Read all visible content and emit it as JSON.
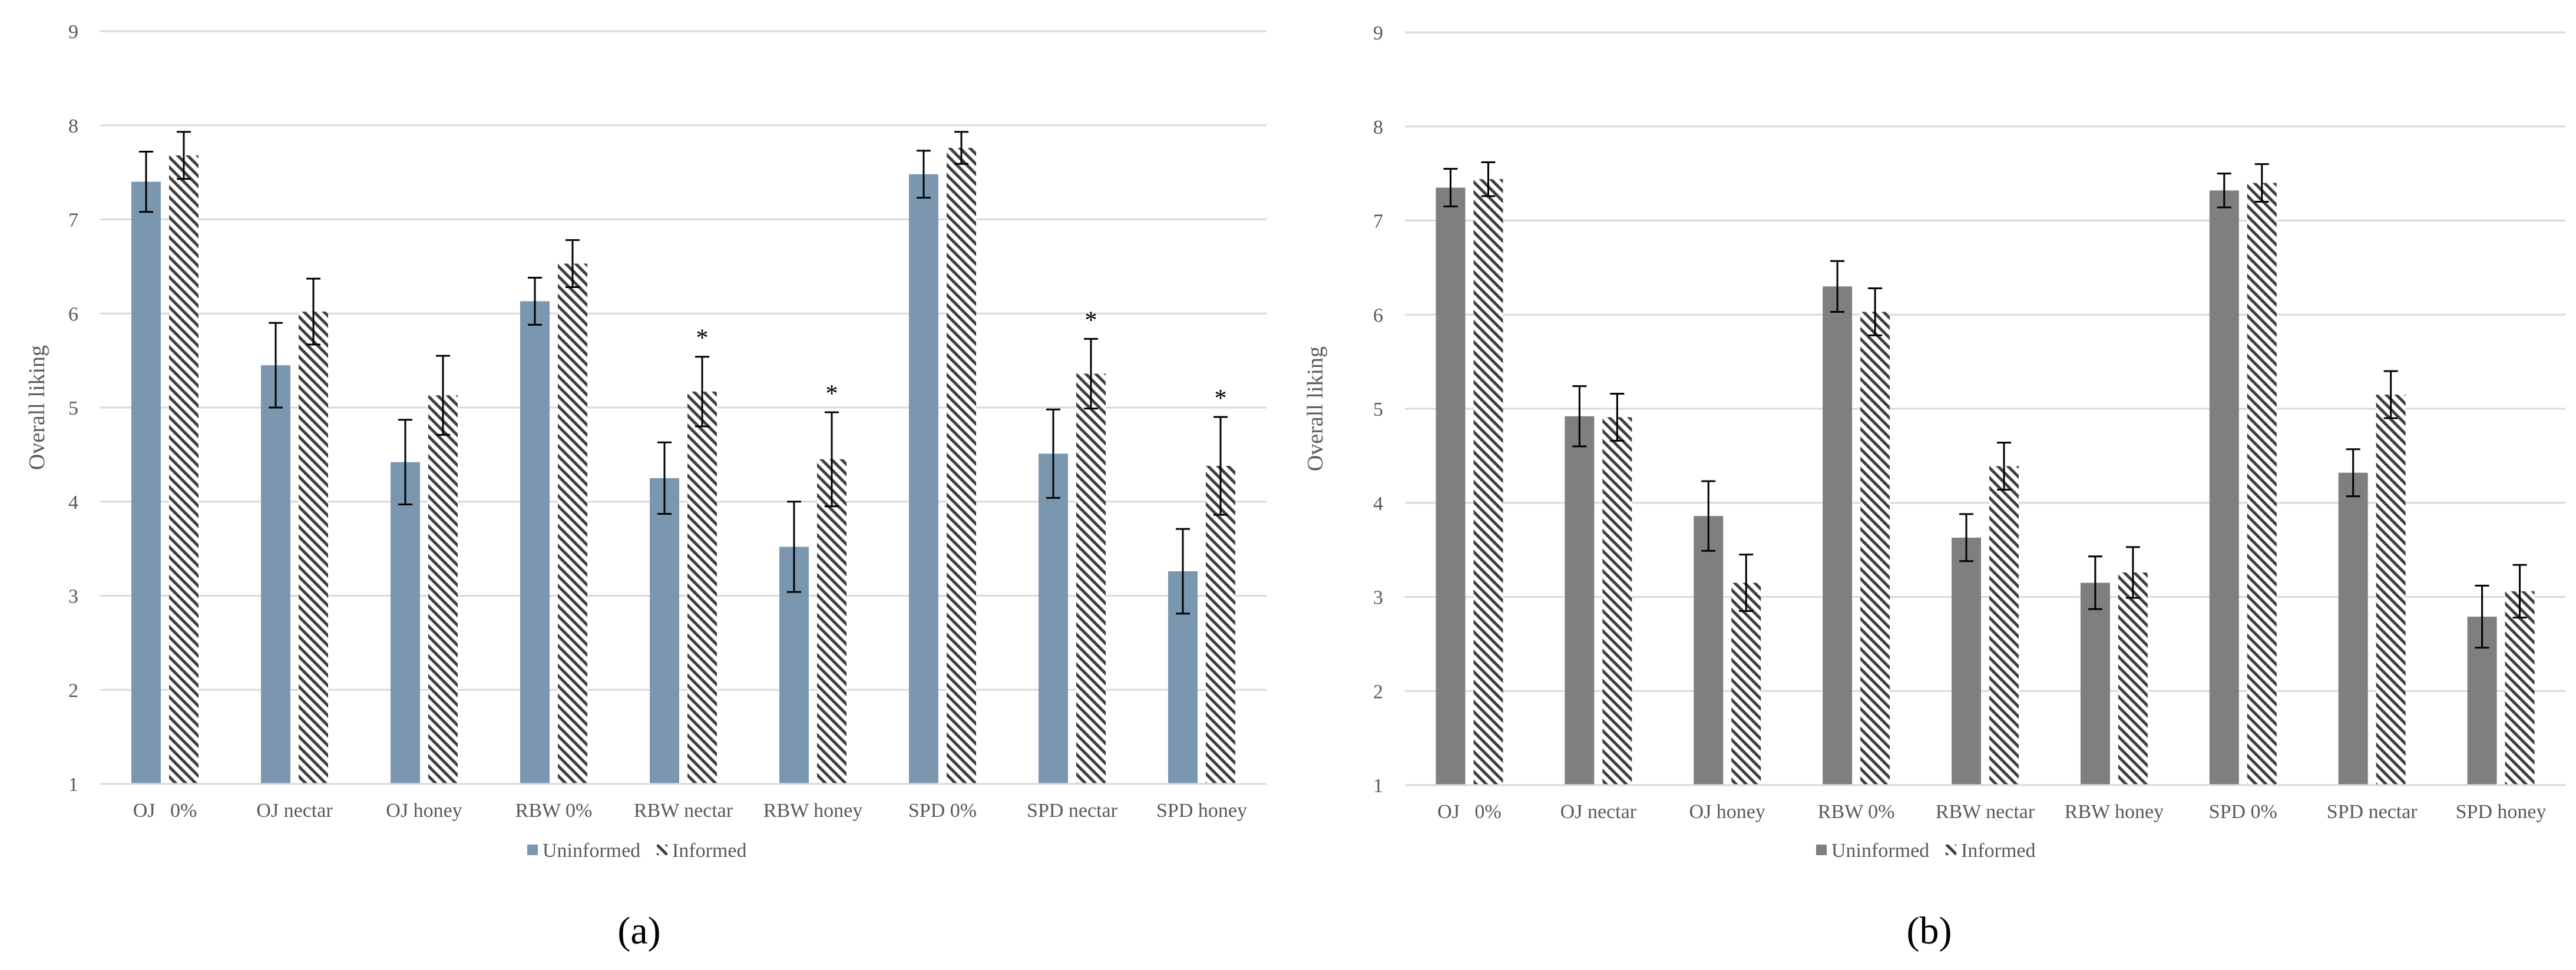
{
  "panel_labels": [
    "(a)",
    "(b)"
  ],
  "colors": {
    "uninformed_a": "#7b97b0",
    "uninformed_b": "#7f7f7f",
    "hatch": "#404040",
    "grid": "#d9d9d9",
    "axis_text": "#595959",
    "error_bar": "#000000"
  },
  "chart_data": [
    {
      "type": "bar",
      "panel": "a",
      "title": "",
      "xlabel": "",
      "ylabel": "Overall liking",
      "ylim": [
        1,
        9
      ],
      "yticks": [
        1,
        2,
        3,
        4,
        5,
        6,
        7,
        8,
        9
      ],
      "grid": true,
      "legend_position": "bottom",
      "categories": [
        "OJ   0%",
        "OJ nectar",
        "OJ honey",
        "RBW 0%",
        "RBW nectar",
        "RBW honey",
        "SPD 0%",
        "SPD nectar",
        "SPD honey"
      ],
      "series": [
        {
          "name": "Uninformed",
          "pattern": "solid",
          "values": [
            7.4,
            5.45,
            4.42,
            6.13,
            4.25,
            3.52,
            7.48,
            4.51,
            3.26
          ],
          "errors": [
            0.32,
            0.45,
            0.45,
            0.25,
            0.38,
            0.48,
            0.25,
            0.47,
            0.45
          ]
        },
        {
          "name": "Informed",
          "pattern": "hatched",
          "values": [
            7.68,
            6.02,
            5.13,
            6.53,
            5.17,
            4.45,
            7.76,
            5.36,
            4.38
          ],
          "errors": [
            0.25,
            0.35,
            0.42,
            0.25,
            0.37,
            0.5,
            0.17,
            0.37,
            0.52
          ]
        }
      ],
      "annotations": [
        {
          "category": "RBW nectar",
          "series": "Informed",
          "text": "*"
        },
        {
          "category": "RBW honey",
          "series": "Informed",
          "text": "*"
        },
        {
          "category": "SPD nectar",
          "series": "Informed",
          "text": "*"
        },
        {
          "category": "SPD honey",
          "series": "Informed",
          "text": "*"
        }
      ]
    },
    {
      "type": "bar",
      "panel": "b",
      "title": "",
      "xlabel": "",
      "ylabel": "Overall liking",
      "ylim": [
        1,
        9
      ],
      "yticks": [
        1,
        2,
        3,
        4,
        5,
        6,
        7,
        8,
        9
      ],
      "grid": true,
      "legend_position": "bottom",
      "categories": [
        "OJ   0%",
        "OJ nectar",
        "OJ honey",
        "RBW 0%",
        "RBW nectar",
        "RBW honey",
        "SPD 0%",
        "SPD nectar",
        "SPD honey"
      ],
      "series": [
        {
          "name": "Uninformed",
          "pattern": "solid",
          "values": [
            7.35,
            4.92,
            3.86,
            6.3,
            3.63,
            3.15,
            7.32,
            4.32,
            2.79
          ],
          "errors": [
            0.2,
            0.32,
            0.37,
            0.27,
            0.25,
            0.28,
            0.18,
            0.25,
            0.33
          ]
        },
        {
          "name": "Informed",
          "pattern": "hatched",
          "values": [
            7.44,
            4.91,
            3.15,
            6.03,
            4.39,
            3.26,
            7.4,
            5.15,
            3.06
          ],
          "errors": [
            0.18,
            0.25,
            0.3,
            0.25,
            0.25,
            0.27,
            0.2,
            0.25,
            0.28
          ]
        }
      ],
      "annotations": []
    }
  ]
}
